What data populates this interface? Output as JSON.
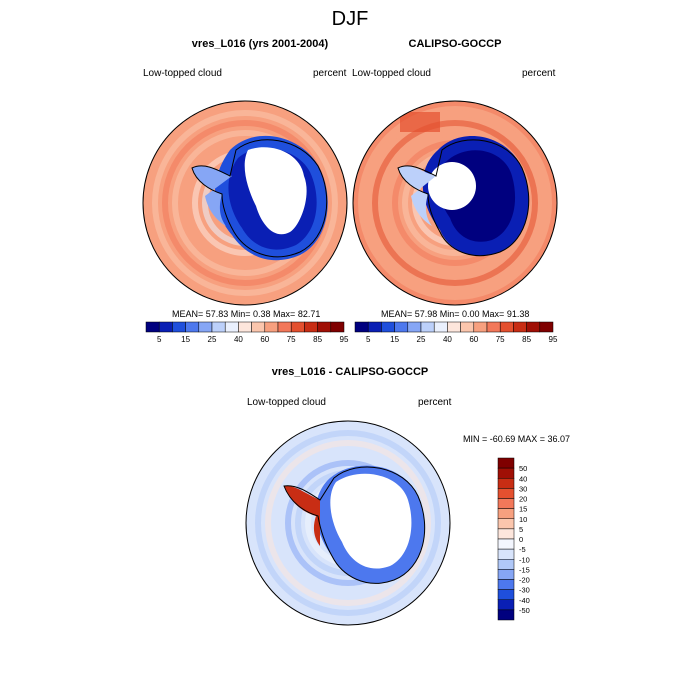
{
  "figure": {
    "title": "DJF",
    "colors": {
      "abs_scale": [
        "#00007f",
        "#0a1fb4",
        "#1f4fdc",
        "#4d78ee",
        "#86a6f5",
        "#bcd0fa",
        "#eaf0fd",
        "#fde6dc",
        "#fbc6ad",
        "#f7a07f",
        "#f2785a",
        "#e4502f",
        "#c82d14",
        "#a00f05",
        "#7f0000"
      ],
      "diff_scale": [
        "#00007f",
        "#0a1fb4",
        "#1f4fdc",
        "#4d78ee",
        "#86a6f5",
        "#b0c8f8",
        "#d8e4fb",
        "#f3f6fe",
        "#fde6dc",
        "#fbc6ad",
        "#f7a07f",
        "#f2785a",
        "#e4502f",
        "#c82d14",
        "#a00f05",
        "#7f0000"
      ]
    }
  },
  "panel_left": {
    "title": "vres_L016 (yrs 2001-2004)",
    "left_label": "Low-topped cloud",
    "right_label": "percent",
    "stats": "MEAN=  57.83  Min=   0.38  Max=  82.71"
  },
  "panel_right": {
    "title": "CALIPSO-GOCCP",
    "left_label": "Low-topped cloud",
    "right_label": "percent",
    "stats": "MEAN=  57.98  Min=   0.00  Max=  91.38"
  },
  "panel_diff": {
    "title": "vres_L016 - CALIPSO-GOCCP",
    "left_label": "Low-topped cloud",
    "right_label": "percent",
    "stats": "MIN = -60.69 MAX =  36.07"
  },
  "chart_data": [
    {
      "type": "heatmap",
      "title": "vres_L016 (yrs 2001-2004)",
      "variable": "Low-topped cloud",
      "units": "percent",
      "mean": 57.83,
      "min": 0.38,
      "max": 82.71,
      "colorbar_levels": [
        5,
        10,
        15,
        20,
        25,
        30,
        40,
        50,
        60,
        70,
        75,
        80,
        85,
        90,
        95
      ],
      "colorbar_tick_labels": [
        "5",
        "15",
        "25",
        "40",
        "60",
        "75",
        "85",
        "95"
      ]
    },
    {
      "type": "heatmap",
      "title": "CALIPSO-GOCCP",
      "variable": "Low-topped cloud",
      "units": "percent",
      "mean": 57.98,
      "min": 0.0,
      "max": 91.38,
      "colorbar_levels": [
        5,
        10,
        15,
        20,
        25,
        30,
        40,
        50,
        60,
        70,
        75,
        80,
        85,
        90,
        95
      ],
      "colorbar_tick_labels": [
        "5",
        "15",
        "25",
        "40",
        "60",
        "75",
        "85",
        "95"
      ]
    },
    {
      "type": "heatmap",
      "title": "vres_L016 - CALIPSO-GOCCP",
      "variable": "Low-topped cloud",
      "units": "percent",
      "min": -60.69,
      "max": 36.07,
      "colorbar_levels": [
        -50,
        -40,
        -30,
        -20,
        -15,
        -10,
        -5,
        0,
        5,
        10,
        15,
        20,
        30,
        40,
        50
      ],
      "colorbar_tick_labels": [
        "50",
        "40",
        "30",
        "20",
        "15",
        "10",
        "5",
        "0",
        "-5",
        "-10",
        "-15",
        "-20",
        "-30",
        "-40",
        "-50"
      ]
    }
  ]
}
